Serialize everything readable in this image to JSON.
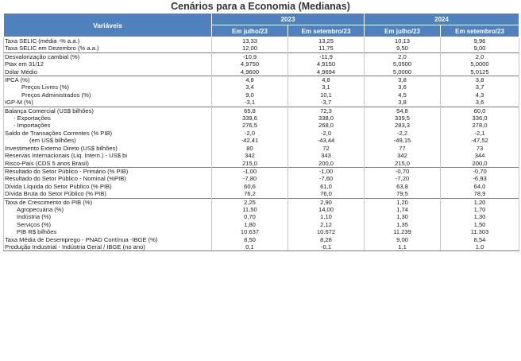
{
  "title": "Cenários para a Economia  (Medianas)",
  "header": {
    "variables_label": "Variáveis",
    "years": [
      "2023",
      "2024"
    ],
    "subcols": [
      "Em julho/23",
      "Em setembro/23",
      "Em julho/23",
      "Em setembro/23"
    ]
  },
  "rows": [
    {
      "label": "Taxa SELIC (média -% a.a.)",
      "values": [
        "13,33",
        "13,25",
        "10,13",
        "9,96"
      ],
      "indent": 0,
      "sep": true
    },
    {
      "label": "Taxa SELIC em Dezembro (% a.a.)",
      "values": [
        "12,00",
        "11,75",
        "9,50",
        "9,00"
      ],
      "indent": 0
    },
    {
      "label": "Desvalorização cambial (%)",
      "values": [
        "-10,9",
        "-11,9",
        "2,0",
        "2,0"
      ],
      "indent": 0,
      "sep": true
    },
    {
      "label": "Ptax em 31/12",
      "values": [
        "4,9750",
        "4,9150",
        "5,0500",
        "5,0000"
      ],
      "indent": 0
    },
    {
      "label": "Dólar Médio",
      "values": [
        "4,9600",
        "4,9694",
        "5,0000",
        "5,0125"
      ],
      "indent": 0
    },
    {
      "label": "IPCA (%)",
      "values": [
        "4,8",
        "4,8",
        "3,8",
        "3,8"
      ],
      "indent": 0,
      "sep": true
    },
    {
      "label": "Preços Livres (%)",
      "values": [
        "3,4",
        "3,1",
        "3,6",
        "3,7"
      ],
      "indent": 3
    },
    {
      "label": "Preços Administrados (%)",
      "values": [
        "9,0",
        "10,1",
        "4,5",
        "4,3"
      ],
      "indent": 3
    },
    {
      "label": "IGP-M (%)",
      "values": [
        "-3,1",
        "-3,7",
        "3,8",
        "3,6"
      ],
      "indent": 0
    },
    {
      "label": "Balança Comercial (US$ bilhões)",
      "values": [
        "65,8",
        "72,3",
        "54,8",
        "60,0"
      ],
      "indent": 0,
      "sep": true
    },
    {
      "label": "- Exportações",
      "values": [
        "339,6",
        "338,0",
        "339,5",
        "336,0"
      ],
      "indent": 1
    },
    {
      "label": "- Importações",
      "values": [
        "276,5",
        "268,0",
        "283,3",
        "278,0"
      ],
      "indent": 1
    },
    {
      "label": "Saldo de Transações Correntes (% PIB)",
      "values": [
        "-2,0",
        "-2,0",
        "-2,2",
        "-2,1"
      ],
      "indent": 0
    },
    {
      "label": "(em US$ bilhões)",
      "values": [
        "-42,41",
        "-43,44",
        "-49,15",
        "-47,52"
      ],
      "indent": 4
    },
    {
      "label": "Investimento Externo Direto (US$ bilhões)",
      "values": [
        "80",
        "72",
        "77",
        "73"
      ],
      "indent": 0
    },
    {
      "label": "Reservas Internacionais (Liq. Intern.) - US$ bi",
      "values": [
        "342",
        "343",
        "342",
        "344"
      ],
      "indent": 0
    },
    {
      "label": "Risco-País (CDS 5 anos Brasil)",
      "values": [
        "215,0",
        "200,0",
        "215,0",
        "200,0"
      ],
      "indent": 0
    },
    {
      "label": "Resultado do Setor Público - Primário  (% PIB)",
      "values": [
        "-1,00",
        "-1,00",
        "-0,70",
        "-0,70"
      ],
      "indent": 0,
      "sep": true
    },
    {
      "label": "Resultado do Setor Público - Nominal  (%PIB)",
      "values": [
        "-7,80",
        "-7,60",
        "-7,20",
        "-6,93"
      ],
      "indent": 0
    },
    {
      "label": "Dívida Líquida do Setor Público (% PIB)",
      "values": [
        "60,6",
        "61,0",
        "63,8",
        "64,0"
      ],
      "indent": 0
    },
    {
      "label": "Dívida Bruta do Setor Público (% PIB)",
      "values": [
        "76,2",
        "76,0",
        "79,5",
        "78,9"
      ],
      "indent": 0
    },
    {
      "label": "Taxa de Crescimento do PIB (%)",
      "values": [
        "2,25",
        "2,90",
        "1,20",
        "1,20"
      ],
      "indent": 0,
      "sep": true
    },
    {
      "label": "Agropecuária (%)",
      "values": [
        "11,50",
        "14,00",
        "1,74",
        "1,70"
      ],
      "indent": 2
    },
    {
      "label": "Indústria (%)",
      "values": [
        "0,70",
        "1,10",
        "1,30",
        "1,30"
      ],
      "indent": 2
    },
    {
      "label": "Serviços (%)",
      "values": [
        "1,80",
        "2,12",
        "1,35",
        "1,50"
      ],
      "indent": 2
    },
    {
      "label": "PIB R$ bilhões",
      "values": [
        "10.637",
        "10.672",
        "11.239",
        "11.303"
      ],
      "indent": 2
    },
    {
      "label": "Taxa Média de Desemprego  - PNAD Contínua -IBGE (%)",
      "values": [
        "8,50",
        "8,28",
        "9,00",
        "8,54"
      ],
      "indent": 0
    },
    {
      "label": "Produção Industrial - Indústria Geral / IBGE (no ano)",
      "values": [
        "0,1",
        "-0,1",
        "1,1",
        "1,0"
      ],
      "indent": 0,
      "end": true
    }
  ]
}
